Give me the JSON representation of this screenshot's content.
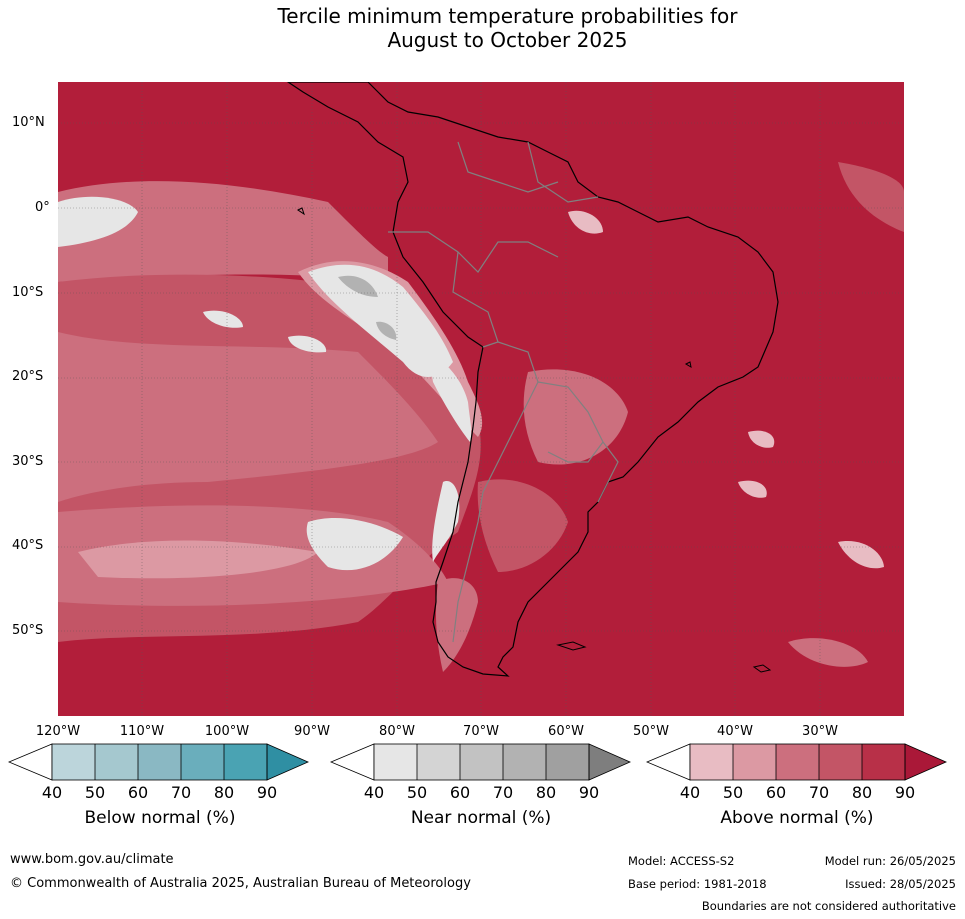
{
  "title": {
    "line1": "Tercile minimum temperature probabilities for",
    "line2": "August to October 2025"
  },
  "map": {
    "latitude_labels": [
      "10°N",
      "0°",
      "10°S",
      "20°S",
      "30°S",
      "40°S",
      "50°S"
    ],
    "longitude_labels": [
      "120°W",
      "110°W",
      "100°W",
      "90°W",
      "80°W",
      "70°W",
      "60°W",
      "50°W",
      "40°W",
      "30°W"
    ],
    "dominant_color": "#b21e3a"
  },
  "legends": [
    {
      "title": "Below normal (%)",
      "ticks": [
        "40",
        "50",
        "60",
        "70",
        "80",
        "90"
      ],
      "colors": [
        "#ffffff",
        "#bcd5db",
        "#a5c8cf",
        "#8ab8c3",
        "#6aaebc",
        "#4aa3b3",
        "#2f8fa3"
      ]
    },
    {
      "title": "Near normal (%)",
      "ticks": [
        "40",
        "50",
        "60",
        "70",
        "80",
        "90"
      ],
      "colors": [
        "#ffffff",
        "#e6e6e6",
        "#d4d4d4",
        "#c2c2c2",
        "#b2b2b2",
        "#a0a0a0",
        "#7e7e7e"
      ]
    },
    {
      "title": "Above normal (%)",
      "ticks": [
        "40",
        "50",
        "60",
        "70",
        "80",
        "90"
      ],
      "colors": [
        "#ffffff",
        "#e8bcc3",
        "#dc99a3",
        "#cc6f7e",
        "#c35566",
        "#b83048",
        "#aa1838"
      ]
    }
  ],
  "footer": {
    "website": "www.bom.gov.au/climate",
    "copyright": "© Commonwealth of Australia 2025, Australian Bureau of Meteorology",
    "model": "Model: ACCESS-S2",
    "base_period": "Base period: 1981-2018",
    "model_run": "Model run: 26/05/2025",
    "issued": "Issued: 28/05/2025",
    "disclaimer": "Boundaries are not considered authoritative"
  }
}
